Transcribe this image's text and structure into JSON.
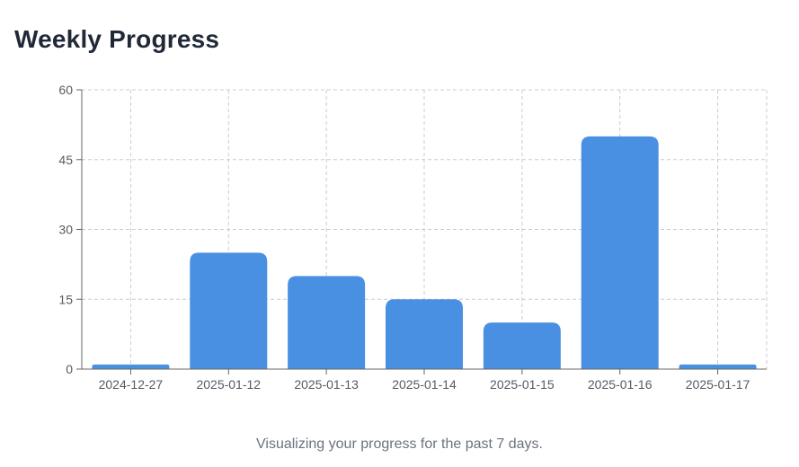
{
  "header": {
    "title": "Weekly Progress"
  },
  "footer": {
    "caption": "Visualizing your progress for the past 7 days."
  },
  "colors": {
    "bar": "#4a90e2",
    "grid": "#cccccc",
    "axis": "#666666",
    "title": "#1f2937",
    "caption": "#6b7280"
  },
  "chart_data": {
    "type": "bar",
    "title": "Weekly Progress",
    "xlabel": "",
    "ylabel": "",
    "categories": [
      "2024-12-27",
      "2025-01-12",
      "2025-01-13",
      "2025-01-14",
      "2025-01-15",
      "2025-01-16",
      "2025-01-17"
    ],
    "values": [
      1,
      25,
      20,
      15,
      10,
      50,
      1
    ],
    "ylim": [
      0,
      60
    ],
    "yticks": [
      0,
      15,
      30,
      45,
      60
    ],
    "grid": true,
    "grid_style": "dashed",
    "legend": "none"
  }
}
